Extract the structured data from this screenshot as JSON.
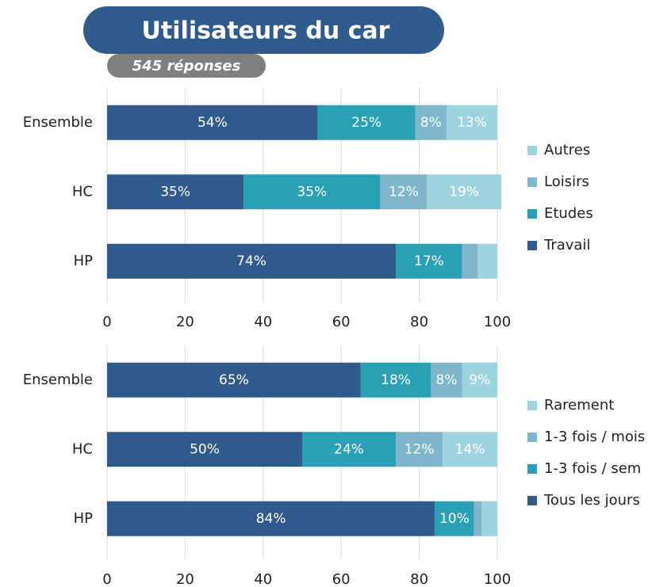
{
  "header": {
    "title": "Utilisateurs du car",
    "subtitle": "545 réponses"
  },
  "chart_data": [
    {
      "type": "bar",
      "orientation": "horizontal",
      "stacked": true,
      "categories": [
        "Ensemble",
        "HC",
        "HP"
      ],
      "series": [
        {
          "name": "Travail",
          "color": "#2e5b8c",
          "values": [
            54,
            35,
            74
          ],
          "value_labels": [
            "54%",
            "35%",
            "74%"
          ]
        },
        {
          "name": "Etudes",
          "color": "#2aa0b5",
          "values": [
            25,
            35,
            17
          ],
          "value_labels": [
            "25%",
            "35%",
            "17%"
          ]
        },
        {
          "name": "Loisirs",
          "color": "#7fb6cc",
          "values": [
            8,
            12,
            4
          ],
          "value_labels": [
            "8%",
            "12%",
            null
          ]
        },
        {
          "name": "Autres",
          "color": "#9ed3e0",
          "values": [
            13,
            19,
            5
          ],
          "value_labels": [
            "13%",
            "19%",
            null
          ]
        }
      ],
      "xlim": [
        0,
        100
      ],
      "xticks": [
        0,
        20,
        40,
        60,
        80,
        100
      ],
      "grid": true,
      "legend": "right"
    },
    {
      "type": "bar",
      "orientation": "horizontal",
      "stacked": true,
      "categories": [
        "Ensemble",
        "HC",
        "HP"
      ],
      "series": [
        {
          "name": "Tous les jours",
          "color": "#2e5b8c",
          "values": [
            65,
            50,
            84
          ],
          "value_labels": [
            "65%",
            "50%",
            "84%"
          ]
        },
        {
          "name": "1-3 fois / sem",
          "color": "#2aa0b5",
          "values": [
            18,
            24,
            10
          ],
          "value_labels": [
            "18%",
            "24%",
            "10%"
          ]
        },
        {
          "name": "1-3 fois / mois",
          "color": "#7fb6cc",
          "values": [
            8,
            12,
            2
          ],
          "value_labels": [
            "8%",
            "12%",
            null
          ]
        },
        {
          "name": "Rarement",
          "color": "#9ed3e0",
          "values": [
            9,
            14,
            4
          ],
          "value_labels": [
            "9%",
            "14%",
            null
          ]
        }
      ],
      "xlim": [
        0,
        100
      ],
      "xticks": [
        0,
        20,
        40,
        60,
        80,
        100
      ],
      "grid": true,
      "legend": "right"
    }
  ]
}
